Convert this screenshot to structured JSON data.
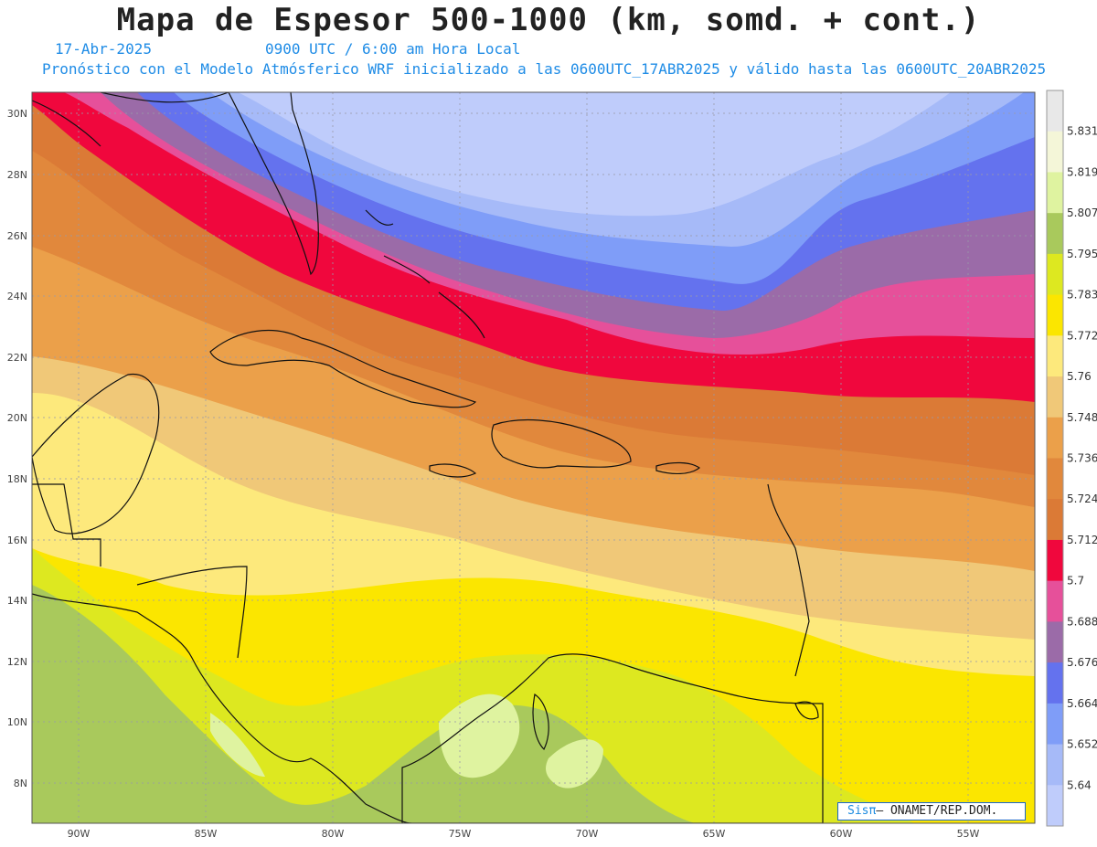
{
  "header": {
    "title": "Mapa de Espesor 500-1000 (km, somd. + cont.)",
    "date": "17-Abr-2025",
    "time": "0900 UTC / 6:00 am Hora Local",
    "model_info": "Pronóstico con el Modelo Atmósferico WRF inicializado a las 0600UTC_17ABR2025 y válido hasta las  0600UTC_20ABR2025"
  },
  "map": {
    "lat_ticks": [
      "30N",
      "28N",
      "26N",
      "24N",
      "22N",
      "20N",
      "18N",
      "16N",
      "14N",
      "12N",
      "10N",
      "8N"
    ],
    "lon_ticks": [
      "90W",
      "85W",
      "80W",
      "75W",
      "70W",
      "65W",
      "60W",
      "55W"
    ]
  },
  "colorbar": {
    "levels": [
      "5.831",
      "5.819",
      "5.807",
      "5.795",
      "5.783",
      "5.772",
      "5.76",
      "5.748",
      "5.736",
      "5.724",
      "5.712",
      "5.7",
      "5.688",
      "5.676",
      "5.664",
      "5.652",
      "5.64"
    ],
    "colors": [
      "#e8e8e8",
      "#f4f6d8",
      "#dff3a0",
      "#a9c95c",
      "#dde820",
      "#fbe600",
      "#fde97c",
      "#f0c878",
      "#eba04a",
      "#e1883c",
      "#db7a36",
      "#f0073d",
      "#e6509a",
      "#9b6ba8",
      "#6472ee",
      "#7f9df8",
      "#a6baf8",
      "#bfccfb"
    ]
  },
  "credit": {
    "logo": "Sisπ",
    "text": "– ONAMET/REP.DOM."
  }
}
